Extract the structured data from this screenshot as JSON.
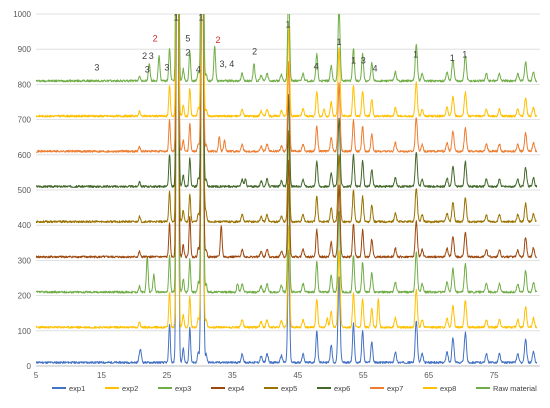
{
  "chart_data": {
    "type": "line",
    "title": "",
    "xlabel": "",
    "ylabel": "",
    "xlim": [
      5,
      82
    ],
    "ylim": [
      0,
      1000
    ],
    "x_ticks": [
      5,
      15,
      25,
      35,
      45,
      55,
      65,
      75
    ],
    "x_tick_labels": [
      "5",
      "15",
      "25",
      "35",
      "45",
      "55",
      "65",
      "75"
    ],
    "y_ticks": [
      0,
      100,
      200,
      300,
      400,
      500,
      600,
      700,
      800,
      900,
      1000
    ],
    "y_tick_labels": [
      "0",
      "100",
      "200",
      "300",
      "400",
      "500",
      "600",
      "700",
      "800",
      "900",
      "1000"
    ],
    "grid": "horizontal",
    "legend_position": "bottom",
    "series": [
      {
        "name": "exp1",
        "color": "#4472c4",
        "baseline": 10,
        "scale": 1.0,
        "seed": 11,
        "extra": [
          [
            21.0,
            30
          ]
        ]
      },
      {
        "name": "exp2",
        "color": "#ffc000",
        "baseline": 110,
        "scale": 0.9,
        "seed": 23,
        "extra": [
          [
            57.3,
            80
          ],
          [
            49.5,
            25
          ]
        ]
      },
      {
        "name": "exp3",
        "color": "#70ad47",
        "baseline": 210,
        "scale": 0.95,
        "seed": 37,
        "extra": [
          [
            22.0,
            100
          ],
          [
            23.0,
            50
          ],
          [
            35.8,
            25
          ]
        ]
      },
      {
        "name": "exp4",
        "color": "#9e480e",
        "baseline": 310,
        "scale": 0.85,
        "seed": 41,
        "extra": [
          [
            33.3,
            90
          ],
          [
            28.5,
            30
          ]
        ]
      },
      {
        "name": "exp5",
        "color": "#997300",
        "baseline": 410,
        "scale": 0.8,
        "seed": 53,
        "extra": [
          [
            30.8,
            25
          ]
        ]
      },
      {
        "name": "exp6",
        "color": "#43682b",
        "baseline": 510,
        "scale": 0.82,
        "seed": 67,
        "extra": [
          [
            37.0,
            20
          ]
        ]
      },
      {
        "name": "exp7",
        "color": "#ed7d31",
        "baseline": 610,
        "scale": 0.8,
        "seed": 71,
        "extra": [
          [
            33.0,
            40
          ],
          [
            33.8,
            30
          ]
        ]
      },
      {
        "name": "exp8",
        "color": "#ffc000",
        "baseline": 710,
        "scale": 0.8,
        "seed": 83,
        "extra": [
          [
            49.0,
            20
          ]
        ]
      },
      {
        "name": "Raw material",
        "color": "#70ad47",
        "baseline": 810,
        "scale": 0.85,
        "seed": 97,
        "extra": [
          [
            22.3,
            50
          ],
          [
            23.8,
            70
          ],
          [
            26.6,
            500
          ],
          [
            32.3,
            100
          ],
          [
            38.3,
            50
          ]
        ]
      }
    ],
    "common_peaks": [
      [
        20.8,
        18,
        0.12
      ],
      [
        25.4,
        110,
        0.12
      ],
      [
        26.6,
        2500,
        0.14
      ],
      [
        27.5,
        40,
        0.12
      ],
      [
        28.5,
        100,
        0.12
      ],
      [
        29.8,
        30,
        0.12
      ],
      [
        30.4,
        2200,
        0.14
      ],
      [
        31.0,
        25,
        0.12
      ],
      [
        36.5,
        25,
        0.15
      ],
      [
        39.4,
        18,
        0.15
      ],
      [
        40.3,
        25,
        0.15
      ],
      [
        42.5,
        20,
        0.15
      ],
      [
        43.6,
        320,
        0.14
      ],
      [
        45.8,
        25,
        0.15
      ],
      [
        47.9,
        90,
        0.14
      ],
      [
        50.1,
        50,
        0.14
      ],
      [
        51.3,
        240,
        0.16
      ],
      [
        53.5,
        110,
        0.14
      ],
      [
        54.9,
        90,
        0.14
      ],
      [
        56.3,
        60,
        0.14
      ],
      [
        59.9,
        30,
        0.15
      ],
      [
        63.1,
        120,
        0.16
      ],
      [
        64.0,
        25,
        0.15
      ],
      [
        67.8,
        30,
        0.15
      ],
      [
        68.7,
        70,
        0.16
      ],
      [
        70.6,
        85,
        0.16
      ],
      [
        73.8,
        25,
        0.15
      ],
      [
        75.8,
        25,
        0.15
      ],
      [
        78.6,
        25,
        0.15
      ],
      [
        79.8,
        65,
        0.16
      ],
      [
        81.0,
        30,
        0.15
      ]
    ],
    "annotations": [
      {
        "text": "3",
        "x": 14.3,
        "y": 840,
        "color": "#404040"
      },
      {
        "text": "2",
        "x": 21.6,
        "y": 872,
        "color": "#404040"
      },
      {
        "text": "3",
        "x": 22.6,
        "y": 872,
        "color": "#404040"
      },
      {
        "text": "2",
        "x": 23.2,
        "y": 922,
        "color": "#d62728"
      },
      {
        "text": "3",
        "x": 22.0,
        "y": 834,
        "color": "#404040"
      },
      {
        "text": "3",
        "x": 25.0,
        "y": 840,
        "color": "#404040"
      },
      {
        "text": "1",
        "x": 26.4,
        "y": 982,
        "color": "#404040"
      },
      {
        "text": "5",
        "x": 28.2,
        "y": 922,
        "color": "#404040"
      },
      {
        "text": "1",
        "x": 30.2,
        "y": 982,
        "color": "#404040"
      },
      {
        "text": "2",
        "x": 28.2,
        "y": 882,
        "color": "#404040"
      },
      {
        "text": "4",
        "x": 29.8,
        "y": 834,
        "color": "#404040"
      },
      {
        "text": "2",
        "x": 32.8,
        "y": 918,
        "color": "#d62728"
      },
      {
        "text": "3,",
        "x": 33.6,
        "y": 850,
        "color": "#404040"
      },
      {
        "text": "4",
        "x": 34.9,
        "y": 850,
        "color": "#404040"
      },
      {
        "text": "2",
        "x": 38.4,
        "y": 885,
        "color": "#404040"
      },
      {
        "text": "1",
        "x": 43.5,
        "y": 962,
        "color": "#404040"
      },
      {
        "text": "4",
        "x": 47.8,
        "y": 843,
        "color": "#404040"
      },
      {
        "text": "1",
        "x": 51.3,
        "y": 912,
        "color": "#404040"
      },
      {
        "text": "1",
        "x": 53.5,
        "y": 860,
        "color": "#404040"
      },
      {
        "text": "3",
        "x": 55.0,
        "y": 860,
        "color": "#404040"
      },
      {
        "text": "4",
        "x": 56.8,
        "y": 836,
        "color": "#404040"
      },
      {
        "text": "1",
        "x": 63.0,
        "y": 876,
        "color": "#404040"
      },
      {
        "text": "1",
        "x": 68.6,
        "y": 866,
        "color": "#404040"
      },
      {
        "text": "1",
        "x": 70.5,
        "y": 876,
        "color": "#404040"
      }
    ]
  }
}
